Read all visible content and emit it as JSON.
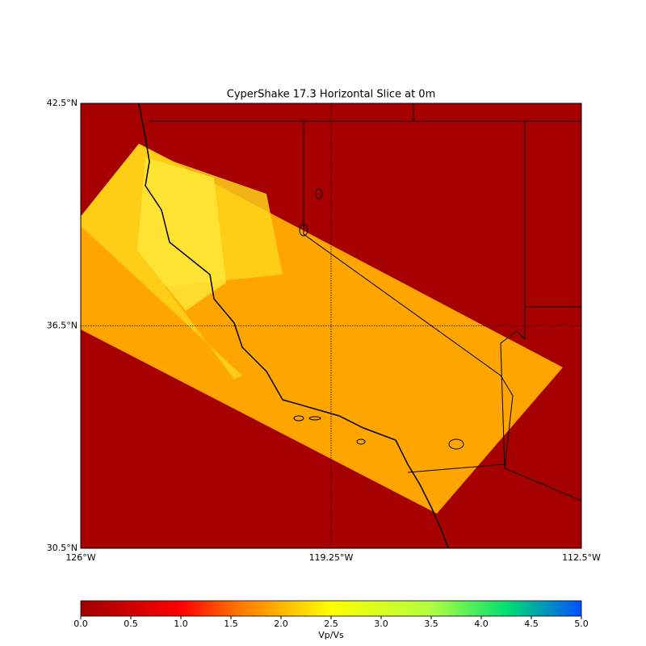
{
  "chart_data": {
    "type": "map",
    "title": "CyperShake 17.3 Horizontal Slice at 0m",
    "xlim": [
      -126,
      -112.5
    ],
    "ylim": [
      30.5,
      42.5
    ],
    "xticks": [
      {
        "value": -126,
        "label": "126°W"
      },
      {
        "value": -119.25,
        "label": "119.25°W"
      },
      {
        "value": -112.5,
        "label": "112.5°W"
      }
    ],
    "yticks": [
      {
        "value": 30.5,
        "label": "30.5°N"
      },
      {
        "value": 36.5,
        "label": "36.5°N"
      },
      {
        "value": 42.5,
        "label": "42.5°N"
      }
    ],
    "grid": true,
    "colorbar": {
      "label": "Vp/Vs",
      "lim": [
        0,
        5
      ],
      "ticks": [
        {
          "value": 0,
          "label": "0.0"
        },
        {
          "value": 0.5,
          "label": "0.5"
        },
        {
          "value": 1,
          "label": "1.0"
        },
        {
          "value": 1.5,
          "label": "1.5"
        },
        {
          "value": 2,
          "label": "2.0"
        },
        {
          "value": 2.5,
          "label": "2.5"
        },
        {
          "value": 3,
          "label": "3.0"
        },
        {
          "value": 3.5,
          "label": "3.5"
        },
        {
          "value": 4,
          "label": "4.0"
        },
        {
          "value": 4.5,
          "label": "4.5"
        },
        {
          "value": 5,
          "label": "5.0"
        }
      ]
    }
  }
}
